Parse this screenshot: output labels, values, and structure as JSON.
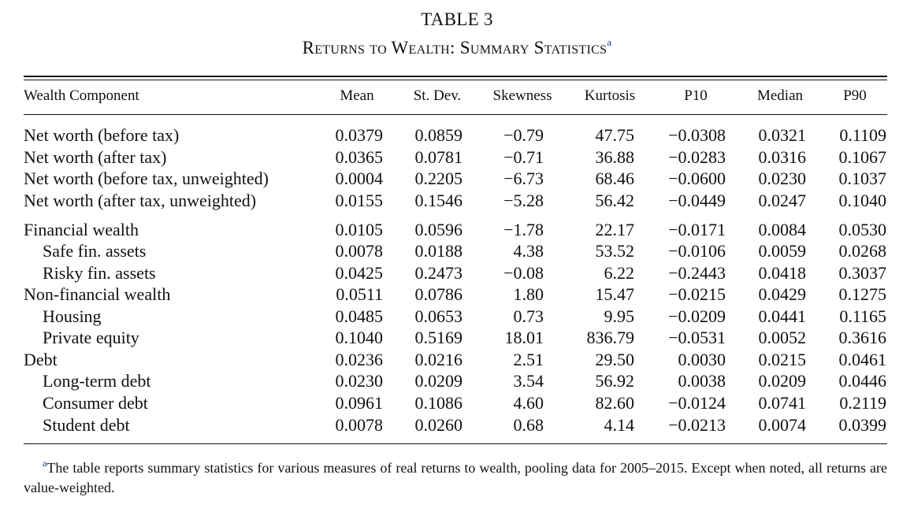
{
  "table": {
    "number": "TABLE 3",
    "caption": "Returns to Wealth: Summary Statistics",
    "caption_note_marker": "a",
    "columns": {
      "label": "Wealth Component",
      "mean": "Mean",
      "sd": "St. Dev.",
      "skew": "Skewness",
      "kurt": "Kurtosis",
      "p10": "P10",
      "median": "Median",
      "p90": "P90"
    },
    "rows": [
      {
        "label": "Net worth (before tax)",
        "indent": false,
        "mean": "0.0379",
        "sd": "0.0859",
        "skew": "−0.79",
        "kurt": "47.75",
        "p10": "−0.0308",
        "median": "0.0321",
        "p90": "0.1109"
      },
      {
        "label": "Net worth (after tax)",
        "indent": false,
        "mean": "0.0365",
        "sd": "0.0781",
        "skew": "−0.71",
        "kurt": "36.88",
        "p10": "−0.0283",
        "median": "0.0316",
        "p90": "0.1067"
      },
      {
        "label": "Net worth (before tax, unweighted)",
        "indent": false,
        "mean": "0.0004",
        "sd": "0.2205",
        "skew": "−6.73",
        "kurt": "68.46",
        "p10": "−0.0600",
        "median": "0.0230",
        "p90": "0.1037"
      },
      {
        "label": "Net worth (after tax, unweighted)",
        "indent": false,
        "mean": "0.0155",
        "sd": "0.1546",
        "skew": "−5.28",
        "kurt": "56.42",
        "p10": "−0.0449",
        "median": "0.0247",
        "p90": "0.1040"
      },
      {
        "label": "Financial wealth",
        "indent": false,
        "mean": "0.0105",
        "sd": "0.0596",
        "skew": "−1.78",
        "kurt": "22.17",
        "p10": "−0.0171",
        "median": "0.0084",
        "p90": "0.0530"
      },
      {
        "label": "Safe fin. assets",
        "indent": true,
        "mean": "0.0078",
        "sd": "0.0188",
        "skew": "4.38",
        "kurt": "53.52",
        "p10": "−0.0106",
        "median": "0.0059",
        "p90": "0.0268"
      },
      {
        "label": "Risky fin. assets",
        "indent": true,
        "mean": "0.0425",
        "sd": "0.2473",
        "skew": "−0.08",
        "kurt": "6.22",
        "p10": "−0.2443",
        "median": "0.0418",
        "p90": "0.3037"
      },
      {
        "label": "Non-financial wealth",
        "indent": false,
        "mean": "0.0511",
        "sd": "0.0786",
        "skew": "1.80",
        "kurt": "15.47",
        "p10": "−0.0215",
        "median": "0.0429",
        "p90": "0.1275"
      },
      {
        "label": "Housing",
        "indent": true,
        "mean": "0.0485",
        "sd": "0.0653",
        "skew": "0.73",
        "kurt": "9.95",
        "p10": "−0.0209",
        "median": "0.0441",
        "p90": "0.1165"
      },
      {
        "label": "Private equity",
        "indent": true,
        "mean": "0.1040",
        "sd": "0.5169",
        "skew": "18.01",
        "kurt": "836.79",
        "p10": "−0.0531",
        "median": "0.0052",
        "p90": "0.3616"
      },
      {
        "label": "Debt",
        "indent": false,
        "mean": "0.0236",
        "sd": "0.0216",
        "skew": "2.51",
        "kurt": "29.50",
        "p10": "0.0030",
        "median": "0.0215",
        "p90": "0.0461"
      },
      {
        "label": "Long-term debt",
        "indent": true,
        "mean": "0.0230",
        "sd": "0.0209",
        "skew": "3.54",
        "kurt": "56.92",
        "p10": "0.0038",
        "median": "0.0209",
        "p90": "0.0446"
      },
      {
        "label": "Consumer debt",
        "indent": true,
        "mean": "0.0961",
        "sd": "0.1086",
        "skew": "4.60",
        "kurt": "82.60",
        "p10": "−0.0124",
        "median": "0.0741",
        "p90": "0.2119"
      },
      {
        "label": "Student debt",
        "indent": true,
        "mean": "0.0078",
        "sd": "0.0260",
        "skew": "0.68",
        "kurt": "4.14",
        "p10": "−0.0213",
        "median": "0.0074",
        "p90": "0.0399"
      }
    ]
  },
  "footnote": {
    "marker": "a",
    "text": "The table reports summary statistics for various measures of real returns to wealth, pooling data for 2005–2015. Except when noted, all returns are value-weighted."
  }
}
